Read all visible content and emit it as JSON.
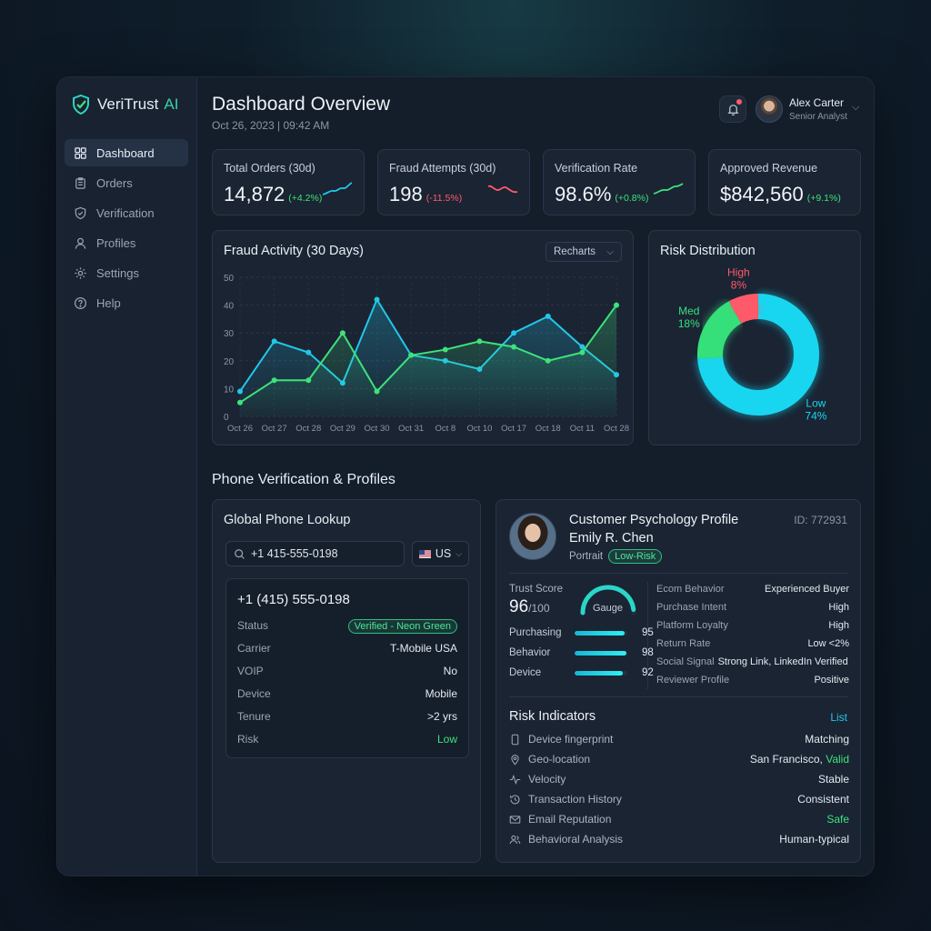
{
  "brand": {
    "name": "VeriTrust",
    "suffix": "AI"
  },
  "sidebar": {
    "items": [
      {
        "label": "Dashboard",
        "icon": "grid-icon"
      },
      {
        "label": "Orders",
        "icon": "clipboard-icon"
      },
      {
        "label": "Verification",
        "icon": "shield-check-icon"
      },
      {
        "label": "Profiles",
        "icon": "user-icon"
      },
      {
        "label": "Settings",
        "icon": "gear-icon"
      },
      {
        "label": "Help",
        "icon": "help-icon"
      }
    ]
  },
  "header": {
    "title": "Dashboard Overview",
    "date": "Oct 26, 2023 | 09:42 AM"
  },
  "user": {
    "name": "Alex Carter",
    "role": "Senior Analyst"
  },
  "kpis": [
    {
      "label": "Total Orders (30d)",
      "value": "14,872",
      "change": "(+4.2%)",
      "trend": "up"
    },
    {
      "label": "Fraud Attempts (30d)",
      "value": "198",
      "change": "(-11.5%)",
      "trend": "down"
    },
    {
      "label": "Verification Rate",
      "value": "98.6%",
      "change": "(+0.8%)",
      "trend": "up"
    },
    {
      "label": "Approved Revenue",
      "value": "$842,560",
      "change": "(+9.1%)",
      "trend": "up"
    }
  ],
  "fraud_chart": {
    "title": "Fraud Activity (30 Days)",
    "select": "Recharts"
  },
  "risk_chart": {
    "title": "Risk Distribution"
  },
  "section_title": "Phone Verification & Profiles",
  "phone": {
    "title": "Global Phone Lookup",
    "input_value": "+1 415-555-0198",
    "country": "US",
    "result_number": "+1 (415) 555-0198",
    "rows": [
      {
        "label": "Status",
        "value": "Verified - Neon Green"
      },
      {
        "label": "Carrier",
        "value": "T-Mobile USA"
      },
      {
        "label": "VOIP",
        "value": "No"
      },
      {
        "label": "Device",
        "value": "Mobile"
      },
      {
        "label": "Tenure",
        "value": ">2 yrs"
      },
      {
        "label": "Risk",
        "value": "Low"
      }
    ]
  },
  "profile": {
    "title": "Customer Psychology Profile",
    "id": "ID: 772931",
    "name": "Emily R. Chen",
    "portrait_label": "Portrait",
    "risk_badge": "Low-Risk",
    "trust_label": "Trust Score",
    "trust_value": "96",
    "trust_max": "/100",
    "gauge_label": "Gauge",
    "gauge_level": 0.96,
    "subscores": [
      {
        "label": "Purchasing",
        "value": "95",
        "level": 0.95
      },
      {
        "label": "Behavior",
        "value": "98",
        "level": 0.98
      },
      {
        "label": "Device",
        "value": "92",
        "level": 0.92
      }
    ],
    "attributes": [
      {
        "label": "Ecom Behavior",
        "value": "Experienced Buyer"
      },
      {
        "label": "Purchase Intent",
        "value": "High"
      },
      {
        "label": "Platform Loyalty",
        "value": "High"
      },
      {
        "label": "Return Rate",
        "value": "Low <2%"
      },
      {
        "label": "Social Signal",
        "value": "Strong Link, LinkedIn Verified"
      },
      {
        "label": "Reviewer Profile",
        "value": "Positive"
      }
    ],
    "risk_title": "Risk Indicators",
    "risk_link": "List",
    "indicators": [
      {
        "label": "Device fingerprint",
        "value": "Matching",
        "icon": "phone-icon"
      },
      {
        "label": "Geo-location",
        "value": "San Francisco,",
        "extra": "Valid",
        "icon": "pin-icon"
      },
      {
        "label": "Velocity",
        "value": "Stable",
        "icon": "pulse-icon"
      },
      {
        "label": "Transaction History",
        "value": "Consistent",
        "icon": "history-icon"
      },
      {
        "label": "Email Reputation",
        "value": "Safe",
        "icon": "mail-icon"
      },
      {
        "label": "Behavioral Analysis",
        "value": "Human-typical",
        "icon": "users-icon"
      }
    ]
  },
  "colors": {
    "blue_series": "#22c7e8",
    "green_series": "#3ee27a",
    "high": "#ff5a6a",
    "accent": "#39d3a4"
  },
  "chart_data": [
    {
      "type": "line",
      "title": "Fraud Activity (30 Days)",
      "categories": [
        "Oct 26",
        "Oct 27",
        "Oct 28",
        "Oct 29",
        "Oct 30",
        "Oct 31",
        "Oct 8",
        "Oct 10",
        "Oct 17",
        "Oct 18",
        "Oct 11",
        "Oct 28"
      ],
      "series": [
        {
          "values": [
            9,
            27,
            23,
            12,
            42,
            22,
            20,
            17,
            30,
            36,
            25,
            15
          ],
          "color": "#22c7e8"
        },
        {
          "values": [
            5,
            13,
            13,
            30,
            9,
            22,
            24,
            27,
            25,
            20,
            23,
            40
          ],
          "color": "#3ee27a"
        }
      ],
      "ylim": [
        0,
        50
      ],
      "yticks": [
        0,
        10,
        20,
        30,
        40,
        50
      ],
      "grid": true
    },
    {
      "type": "pie",
      "title": "Risk Distribution",
      "slices": [
        {
          "name": "Low",
          "value": 74,
          "label": "74%",
          "color": "#19d6f0"
        },
        {
          "name": "Med",
          "value": 18,
          "label": "18%",
          "color": "#35e07b"
        },
        {
          "name": "High",
          "value": 8,
          "label": "8%",
          "color": "#ff5a6a"
        }
      ]
    }
  ]
}
